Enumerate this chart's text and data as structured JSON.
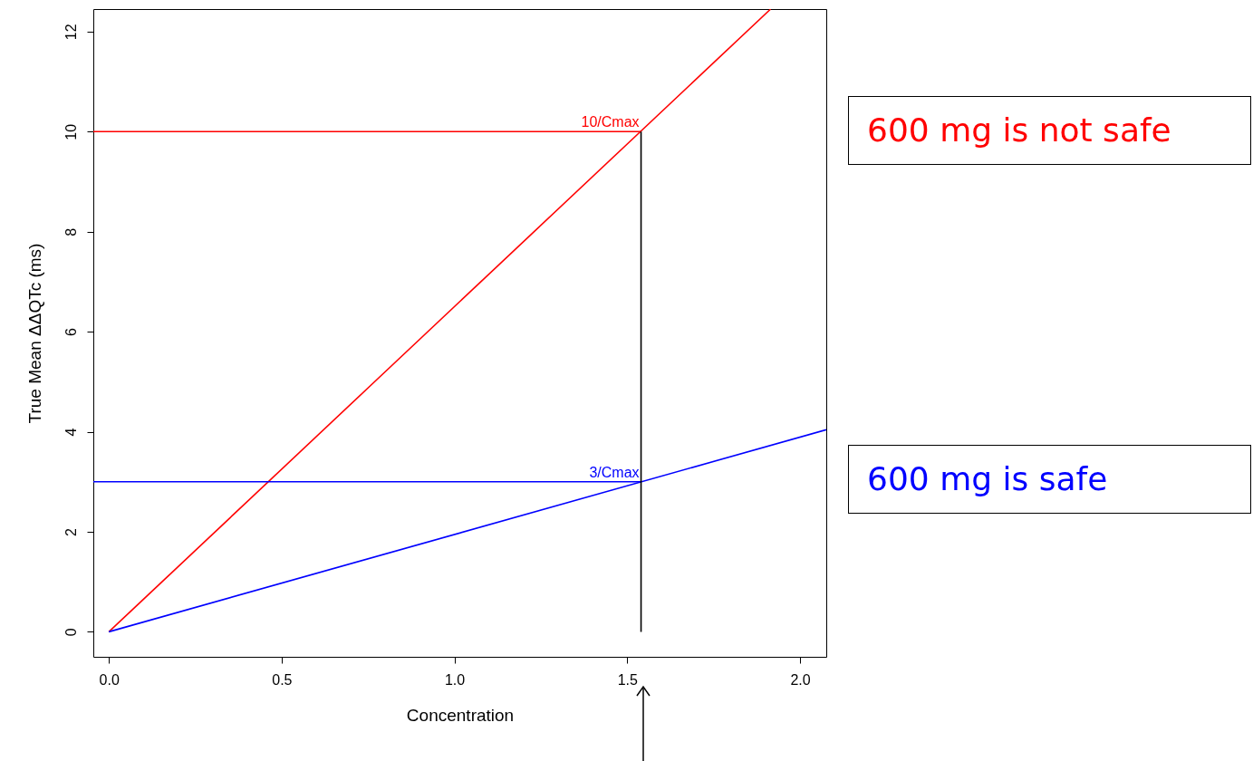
{
  "chart_data": {
    "type": "line",
    "xlabel": "Concentration",
    "ylabel": "True Mean ΔΔQTc (ms)",
    "xlim": [
      -0.045,
      2.076
    ],
    "ylim": [
      -0.5,
      12.45
    ],
    "xticks": [
      {
        "value": 0,
        "label": "0.0"
      },
      0.5,
      {
        "value": 1,
        "label": "1.0"
      },
      1.5,
      {
        "value": 2,
        "label": "2.0"
      }
    ],
    "yticks": [
      0,
      2,
      4,
      6,
      8,
      10,
      12
    ],
    "series": [
      {
        "color": "#ff0000",
        "x": [
          0,
          1.915
        ],
        "values": [
          0,
          12.45
        ]
      },
      {
        "color": "#0000ff",
        "x": [
          0,
          2.076
        ],
        "values": [
          0,
          4.04
        ]
      },
      {
        "color": "#ff0000",
        "x": [
          -0.045,
          1.54
        ],
        "values": [
          10,
          10
        ]
      },
      {
        "color": "#0000ff",
        "x": [
          -0.045,
          1.54
        ],
        "values": [
          3,
          3
        ]
      },
      {
        "color": "#000000",
        "x": [
          1.54,
          1.54
        ],
        "values": [
          0,
          10
        ]
      }
    ],
    "annotations": [
      {
        "text": "10/Cmax",
        "x": 1.54,
        "y": 10
      },
      {
        "text": "3/Cmax",
        "x": 1.54,
        "y": 3
      },
      "600 mg is not safe",
      "600 mg is safe"
    ],
    "grid": false,
    "marker": "none",
    "line_style": "solid"
  }
}
